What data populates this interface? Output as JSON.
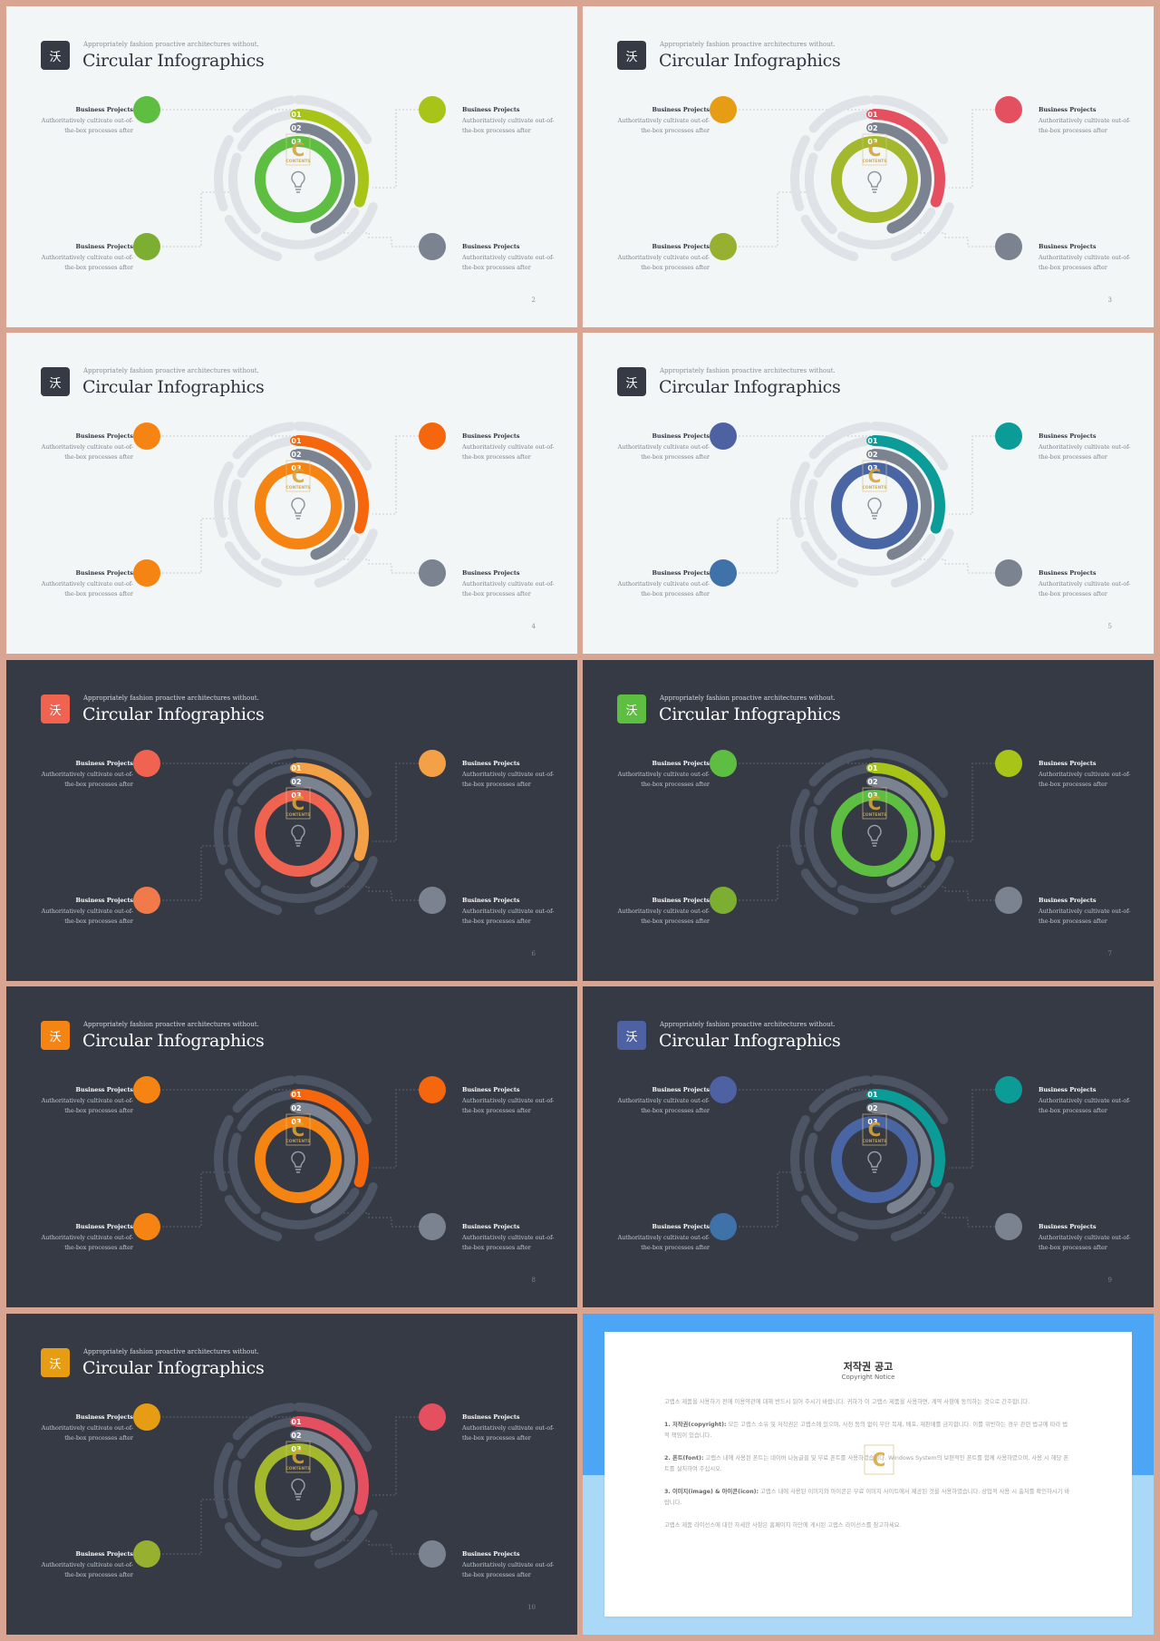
{
  "slides": [
    {
      "theme": "light",
      "subtitle": "Appropriately fashion proactive architectures without.",
      "title": "Circular Infographics",
      "logo_glyph": "沃",
      "logo_color": "#353a45",
      "ribbon_colors": [
        "#a9c418",
        "#7b8391",
        "#5ebe42"
      ],
      "ribbon_labels": [
        "01",
        "02",
        "03"
      ],
      "blocks": [
        {
          "title": "Business Projects",
          "line1": "Authoritatively cultivate out-of-",
          "line2": "the-box processes after",
          "color": "#5ebe42"
        },
        {
          "title": "Business Projects",
          "line1": "Authoritatively cultivate out-of-",
          "line2": "the-box processes after",
          "color": "#a9c418"
        },
        {
          "title": "Business Projects",
          "line1": "Authoritatively cultivate out-of-",
          "line2": "the-box processes after",
          "color": "#7cae32"
        },
        {
          "title": "Business Projects",
          "line1": "Authoritatively cultivate out-of-",
          "line2": "the-box processes after",
          "color": "#7b8391"
        }
      ],
      "page": "2"
    },
    {
      "theme": "light",
      "subtitle": "Appropriately fashion proactive architectures without.",
      "title": "Circular Infographics",
      "logo_glyph": "沃",
      "logo_color": "#353a45",
      "ribbon_colors": [
        "#e4505f",
        "#7b8391",
        "#a3b82c"
      ],
      "ribbon_labels": [
        "01",
        "02",
        "03"
      ],
      "blocks": [
        {
          "title": "Business Projects",
          "line1": "Authoritatively cultivate out-of-",
          "line2": "the-box processes after",
          "color": "#e79d13"
        },
        {
          "title": "Business Projects",
          "line1": "Authoritatively cultivate out-of-",
          "line2": "the-box processes after",
          "color": "#e4505f"
        },
        {
          "title": "Business Projects",
          "line1": "Authoritatively cultivate out-of-",
          "line2": "the-box processes after",
          "color": "#97b02f"
        },
        {
          "title": "Business Projects",
          "line1": "Authoritatively cultivate out-of-",
          "line2": "the-box processes after",
          "color": "#7b8391"
        }
      ],
      "page": "3"
    },
    {
      "theme": "light",
      "subtitle": "Appropriately fashion proactive architectures without.",
      "title": "Circular Infographics",
      "logo_glyph": "沃",
      "logo_color": "#353a45",
      "ribbon_colors": [
        "#f5660d",
        "#7b8391",
        "#f58412"
      ],
      "ribbon_labels": [
        "01",
        "02",
        "03"
      ],
      "blocks": [
        {
          "title": "Business Projects",
          "line1": "Authoritatively cultivate out-of-",
          "line2": "the-box processes after",
          "color": "#f58412"
        },
        {
          "title": "Business Projects",
          "line1": "Authoritatively cultivate out-of-",
          "line2": "the-box processes after",
          "color": "#f5660d"
        },
        {
          "title": "Business Projects",
          "line1": "Authoritatively cultivate out-of-",
          "line2": "the-box processes after",
          "color": "#f58412"
        },
        {
          "title": "Business Projects",
          "line1": "Authoritatively cultivate out-of-",
          "line2": "the-box processes after",
          "color": "#7b8391"
        }
      ],
      "page": "4"
    },
    {
      "theme": "light",
      "subtitle": "Appropriately fashion proactive architectures without.",
      "title": "Circular Infographics",
      "logo_glyph": "沃",
      "logo_color": "#353a45",
      "ribbon_colors": [
        "#0c9c98",
        "#7b8391",
        "#4a65a3"
      ],
      "ribbon_labels": [
        "01",
        "02",
        "03"
      ],
      "blocks": [
        {
          "title": "Business Projects",
          "line1": "Authoritatively cultivate out-of-",
          "line2": "the-box processes after",
          "color": "#4e62a3"
        },
        {
          "title": "Business Projects",
          "line1": "Authoritatively cultivate out-of-",
          "line2": "the-box processes after",
          "color": "#0c9c98"
        },
        {
          "title": "Business Projects",
          "line1": "Authoritatively cultivate out-of-",
          "line2": "the-box processes after",
          "color": "#3f72a8"
        },
        {
          "title": "Business Projects",
          "line1": "Authoritatively cultivate out-of-",
          "line2": "the-box processes after",
          "color": "#7b8391"
        }
      ],
      "page": "5"
    },
    {
      "theme": "dark",
      "subtitle": "Appropriately fashion proactive architectures without.",
      "title": "Circular Infographics",
      "logo_glyph": "沃",
      "logo_color": "#ef6350",
      "ribbon_colors": [
        "#f4a046",
        "#7b8391",
        "#ef6350"
      ],
      "ribbon_labels": [
        "01",
        "02",
        "03"
      ],
      "blocks": [
        {
          "title": "Business Projects",
          "line1": "Authoritatively cultivate out-of-",
          "line2": "the-box processes after",
          "color": "#ef6350"
        },
        {
          "title": "Business Projects",
          "line1": "Authoritatively cultivate out-of-",
          "line2": "the-box processes after",
          "color": "#f4a046"
        },
        {
          "title": "Business Projects",
          "line1": "Authoritatively cultivate out-of-",
          "line2": "the-box processes after",
          "color": "#f07a4a"
        },
        {
          "title": "Business Projects",
          "line1": "Authoritatively cultivate out-of-",
          "line2": "the-box processes after",
          "color": "#7b8391"
        }
      ],
      "page": "6"
    },
    {
      "theme": "dark",
      "subtitle": "Appropriately fashion proactive architectures without.",
      "title": "Circular Infographics",
      "logo_glyph": "沃",
      "logo_color": "#5ebe42",
      "ribbon_colors": [
        "#a9c418",
        "#7b8391",
        "#5ebe42"
      ],
      "ribbon_labels": [
        "01",
        "02",
        "03"
      ],
      "blocks": [
        {
          "title": "Business Projects",
          "line1": "Authoritatively cultivate out-of-",
          "line2": "the-box processes after",
          "color": "#5ebe42"
        },
        {
          "title": "Business Projects",
          "line1": "Authoritatively cultivate out-of-",
          "line2": "the-box processes after",
          "color": "#a9c418"
        },
        {
          "title": "Business Projects",
          "line1": "Authoritatively cultivate out-of-",
          "line2": "the-box processes after",
          "color": "#7cae32"
        },
        {
          "title": "Business Projects",
          "line1": "Authoritatively cultivate out-of-",
          "line2": "the-box processes after",
          "color": "#7b8391"
        }
      ],
      "page": "7"
    },
    {
      "theme": "dark",
      "subtitle": "Appropriately fashion proactive architectures without.",
      "title": "Circular Infographics",
      "logo_glyph": "沃",
      "logo_color": "#f58412",
      "ribbon_colors": [
        "#f5660d",
        "#7b8391",
        "#f58412"
      ],
      "ribbon_labels": [
        "01",
        "02",
        "03"
      ],
      "blocks": [
        {
          "title": "Business Projects",
          "line1": "Authoritatively cultivate out-of-",
          "line2": "the-box processes after",
          "color": "#f58412"
        },
        {
          "title": "Business Projects",
          "line1": "Authoritatively cultivate out-of-",
          "line2": "the-box processes after",
          "color": "#f5660d"
        },
        {
          "title": "Business Projects",
          "line1": "Authoritatively cultivate out-of-",
          "line2": "the-box processes after",
          "color": "#f58412"
        },
        {
          "title": "Business Projects",
          "line1": "Authoritatively cultivate out-of-",
          "line2": "the-box processes after",
          "color": "#7b8391"
        }
      ],
      "page": "8"
    },
    {
      "theme": "dark",
      "subtitle": "Appropriately fashion proactive architectures without.",
      "title": "Circular Infographics",
      "logo_glyph": "沃",
      "logo_color": "#4e62a3",
      "ribbon_colors": [
        "#0c9c98",
        "#7b8391",
        "#4a65a3"
      ],
      "ribbon_labels": [
        "01",
        "02",
        "03"
      ],
      "blocks": [
        {
          "title": "Business Projects",
          "line1": "Authoritatively cultivate out-of-",
          "line2": "the-box processes after",
          "color": "#4e62a3"
        },
        {
          "title": "Business Projects",
          "line1": "Authoritatively cultivate out-of-",
          "line2": "the-box processes after",
          "color": "#0c9c98"
        },
        {
          "title": "Business Projects",
          "line1": "Authoritatively cultivate out-of-",
          "line2": "the-box processes after",
          "color": "#3f72a8"
        },
        {
          "title": "Business Projects",
          "line1": "Authoritatively cultivate out-of-",
          "line2": "the-box processes after",
          "color": "#7b8391"
        }
      ],
      "page": "9"
    },
    {
      "theme": "dark",
      "subtitle": "Appropriately fashion proactive architectures without.",
      "title": "Circular Infographics",
      "logo_glyph": "沃",
      "logo_color": "#e79d13",
      "ribbon_colors": [
        "#e4505f",
        "#7b8391",
        "#a3b82c"
      ],
      "ribbon_labels": [
        "01",
        "02",
        "03"
      ],
      "blocks": [
        {
          "title": "Business Projects",
          "line1": "Authoritatively cultivate out-of-",
          "line2": "the-box processes after",
          "color": "#e79d13"
        },
        {
          "title": "Business Projects",
          "line1": "Authoritatively cultivate out-of-",
          "line2": "the-box processes after",
          "color": "#e4505f"
        },
        {
          "title": "Business Projects",
          "line1": "Authoritatively cultivate out-of-",
          "line2": "the-box processes after",
          "color": "#97b02f"
        },
        {
          "title": "Business Projects",
          "line1": "Authoritatively cultivate out-of-",
          "line2": "the-box processes after",
          "color": "#7b8391"
        }
      ],
      "page": "10"
    }
  ],
  "watermark": {
    "letter": "C",
    "word": "CONTENTS"
  },
  "notice": {
    "title": "저작권 공고",
    "subtitle": "Copyright Notice",
    "intro": "고랩스 제품을 사용하기 전에 이용약관에 대해 반드시 읽어 주시기 바랍니다. 귀하가 이 고랩스 제품을 사용하면, 계약 사항에 동의하는 것으로 간주합니다.",
    "s1_head": "1. 저작권(copyright):",
    "s1_body": "모든 고랩스 소유 및 저작권은 고랩스에 있으며, 사전 동의 없이 무단 복제, 배포, 재판매를 금지합니다. 이를 위반하는 경우 관련 법규에 따라 법적 책임이 있습니다.",
    "s2_head": "2. 폰트(font):",
    "s2_body": "고랩스 내에 사용된 폰트는 네이버 나눔글꼴 및 무료 폰트를 사용하였습니다. Windows System의 보편적인 폰트를 함께 사용하였으며, 사용 시 해당 폰트를 설치하여 주십시오.",
    "s3_head": "3. 이미지(image) & 아이콘(icon):",
    "s3_body": "고랩스 내에 사용된 이미지와 아이콘은 무료 이미지 사이트에서 제공된 것을 사용하였습니다. 상업적 사용 시 출처를 확인하시기 바랍니다.",
    "closing": "고랩스 제품 라이선스에 대한 자세한 사항은 홈페이지 하단에 게시된 고랩스 라이선스를 참고하세요."
  }
}
